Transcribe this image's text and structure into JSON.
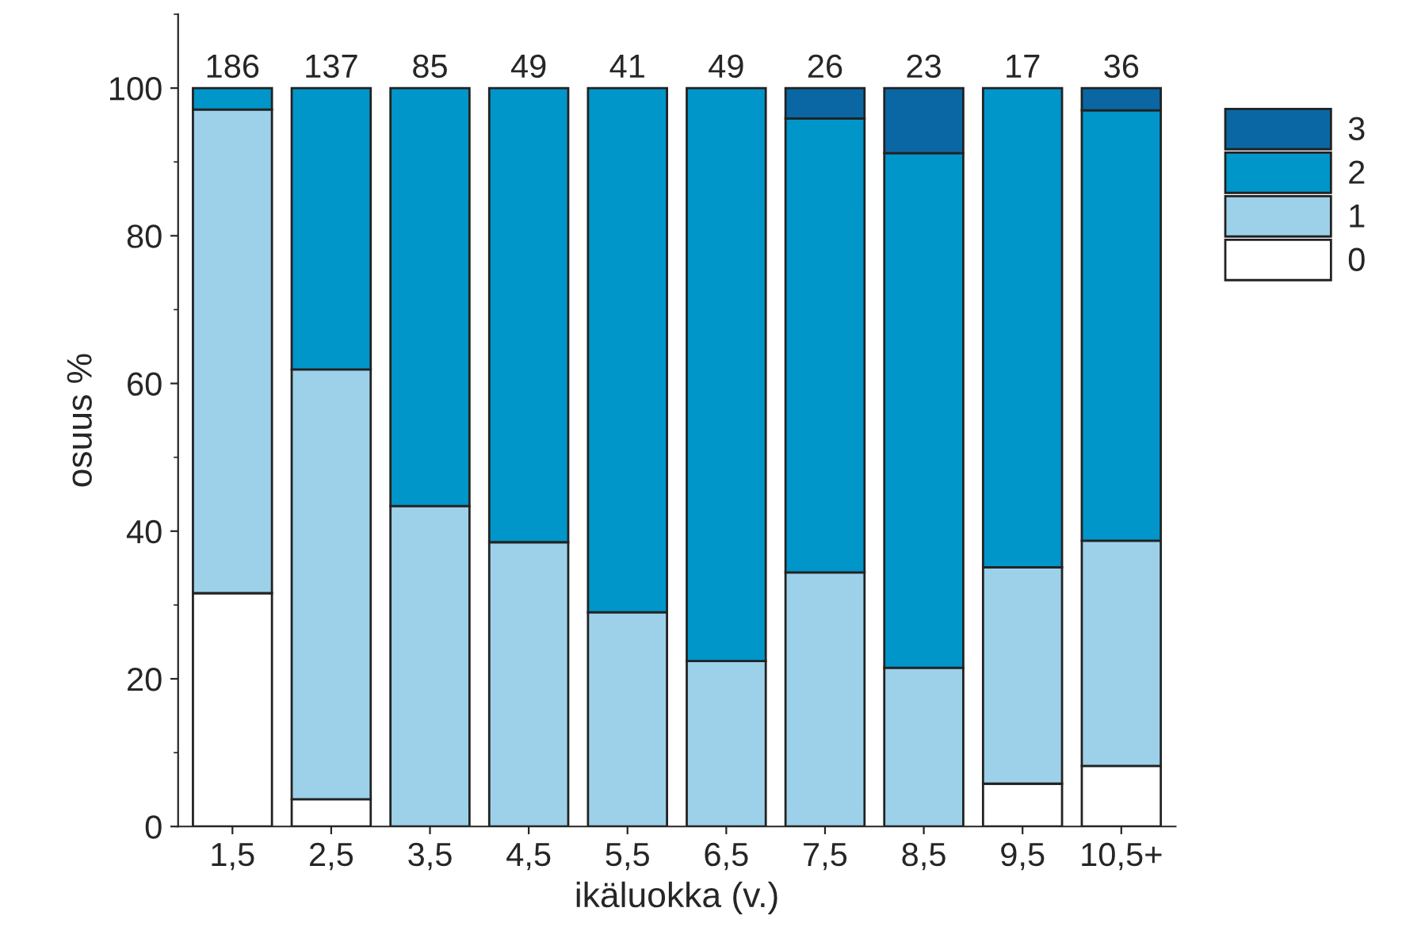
{
  "chart_data": {
    "type": "bar",
    "stacked": true,
    "xlabel": "ikäluokka (v.)",
    "ylabel": "osuus %",
    "categories": [
      "1,5",
      "2,5",
      "3,5",
      "4,5",
      "5,5",
      "6,5",
      "7,5",
      "8,5",
      "9,5",
      "10,5+"
    ],
    "series": [
      {
        "name": "0",
        "color": "#ffffff",
        "values": [
          31.6,
          3.7,
          null,
          null,
          null,
          null,
          null,
          null,
          5.8,
          8.2
        ]
      },
      {
        "name": "1",
        "color": "#9dd1ea",
        "values": [
          65.5,
          58.2,
          43.4,
          38.5,
          29.0,
          22.4,
          34.4,
          21.5,
          29.3,
          30.5
        ]
      },
      {
        "name": "2",
        "color": "#0096c9",
        "values": [
          2.9,
          38.1,
          56.6,
          61.5,
          71.0,
          77.6,
          61.5,
          69.7,
          64.9,
          58.3
        ]
      },
      {
        "name": "3",
        "color": "#0a67a3",
        "values": [
          null,
          null,
          null,
          null,
          null,
          null,
          4.1,
          8.8,
          null,
          3.0
        ]
      }
    ],
    "annotations": [
      {
        "text": "186",
        "x": "1,5",
        "y": 100
      },
      {
        "text": "137",
        "x": "2,5",
        "y": 100
      },
      {
        "text": "85",
        "x": "3,5",
        "y": 100
      },
      {
        "text": "49",
        "x": "4,5",
        "y": 100
      },
      {
        "text": "41",
        "x": "5,5",
        "y": 100
      },
      {
        "text": "49",
        "x": "6,5",
        "y": 100
      },
      {
        "text": "26",
        "x": "7,5",
        "y": 100
      },
      {
        "text": "23",
        "x": "8,5",
        "y": 100
      },
      {
        "text": "17",
        "x": "9,5",
        "y": 100
      },
      {
        "text": "36",
        "x": "10,5+",
        "y": 100
      }
    ],
    "ylim": [
      0,
      110
    ],
    "yticks": [
      0,
      20,
      40,
      60,
      80,
      100
    ],
    "grid": false,
    "legend": "right"
  }
}
